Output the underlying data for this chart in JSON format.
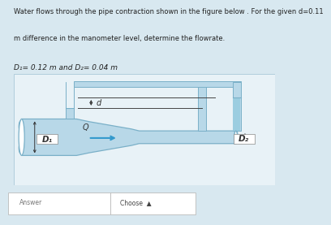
{
  "fig_bg": "#d8e8f0",
  "diagram_bg": "#e8f2f7",
  "pipe_fill": "#b8d8e8",
  "pipe_edge": "#7ab0c8",
  "tube_fill": "#b8d8e8",
  "tube_edge": "#7ab0c8",
  "water_fill": "#9bcde0",
  "text_color": "#222222",
  "arrow_color": "#3399cc",
  "title_line1": "Water flows through the pipe contraction shown in the figure below . For the given d=0.11",
  "title_line2": "m difference in the manometer level, determine the flowrate.",
  "subtitle": "D₁= 0.12 m and D₂= 0.04 m",
  "D1_label": "D₁",
  "D2_label": "D₂",
  "Q_label": "Q",
  "d_label": "d",
  "answer_label": "Answer",
  "choose_label": "Choose"
}
